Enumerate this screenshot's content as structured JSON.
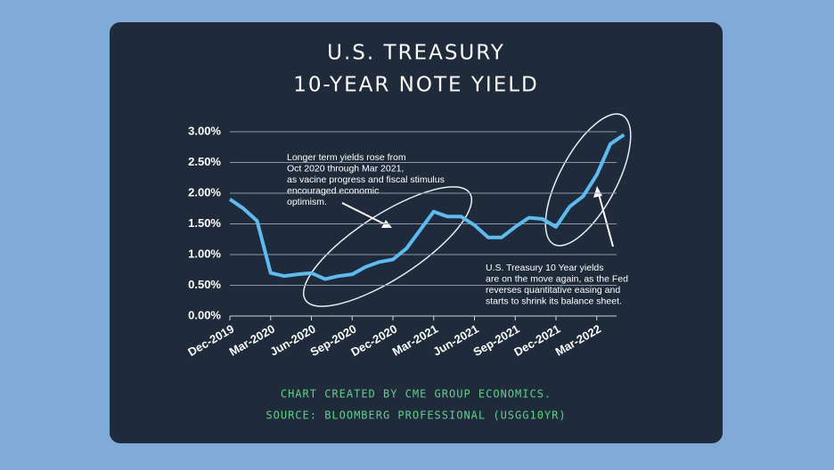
{
  "chart_data": {
    "type": "line",
    "title_lines": [
      "U.S. TREASURY",
      "10-YEAR NOTE YIELD"
    ],
    "categories": [
      "Dec-2019",
      null,
      null,
      "Mar-2020",
      null,
      null,
      "Jun-2020",
      null,
      null,
      "Sep-2020",
      null,
      null,
      "Dec-2020",
      null,
      null,
      "Mar-2021",
      null,
      null,
      "Jun-2021",
      null,
      null,
      "Sep-2021",
      null,
      null,
      "Dec-2021",
      null,
      null,
      "Mar-2022",
      null,
      null
    ],
    "values": [
      1.9,
      1.75,
      1.55,
      0.7,
      0.65,
      0.68,
      0.7,
      0.6,
      0.65,
      0.68,
      0.8,
      0.88,
      0.92,
      1.1,
      1.4,
      1.7,
      1.62,
      1.62,
      1.48,
      1.28,
      1.28,
      1.45,
      1.6,
      1.58,
      1.45,
      1.78,
      1.95,
      2.3,
      2.8,
      2.95
    ],
    "color": "#5bbcf2",
    "ylim": [
      0,
      3.1
    ],
    "yticks": [
      {
        "value": 0,
        "label": "0.00%"
      },
      {
        "value": 0.5,
        "label": "0.50%"
      },
      {
        "value": 1,
        "label": "1.00%"
      },
      {
        "value": 1.5,
        "label": "1.50%"
      },
      {
        "value": 2,
        "label": "2.00%"
      },
      {
        "value": 2.5,
        "label": "2.50%"
      },
      {
        "value": 3,
        "label": "3.00%"
      }
    ],
    "grid": true,
    "annotations": [
      [
        "Longer term yields rose from",
        "Oct 2020 through Mar 2021,",
        "as vacine progress and fiscal stimulus",
        "encouraged economic",
        "optimism."
      ],
      [
        "U.S. Treasury 10 Year yields",
        "are on the move again, as the Fed",
        "reverses quantitative easing and",
        "starts to shrink its balance sheet."
      ]
    ],
    "footer": [
      "CHART CREATED BY CME GROUP ECONOMICS.",
      "SOURCE: BLOOMBERG PROFESSIONAL (USGG10YR)"
    ]
  }
}
